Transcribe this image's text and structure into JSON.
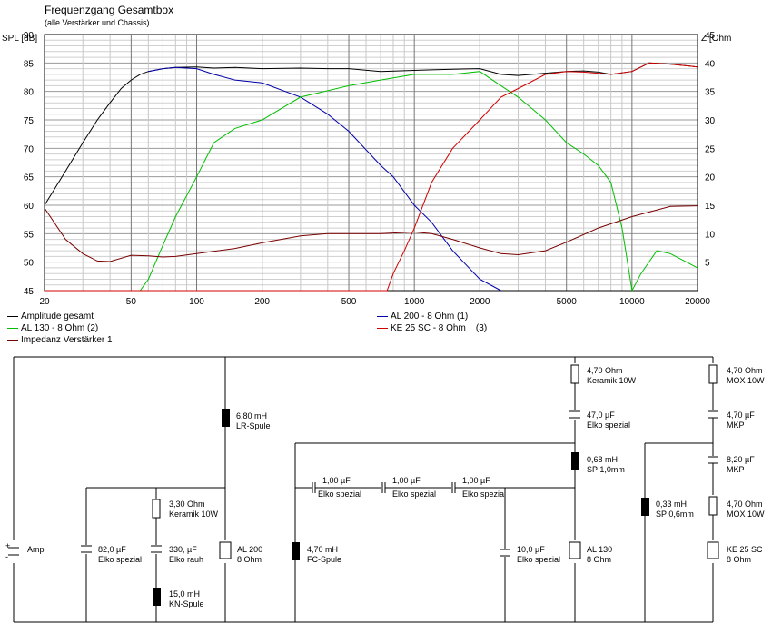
{
  "chart_data": {
    "type": "line",
    "title": "Frequenzgang Gesamtbox",
    "subtitle": "(alle Verstärker und Chassis)",
    "ylabel": "SPL [dB]",
    "y2label": "Z [Ohm",
    "x_scale": "log",
    "xlim": [
      20,
      20000
    ],
    "ylim": [
      45,
      90
    ],
    "y2lim": [
      0,
      45
    ],
    "x_ticks": [
      20,
      50,
      100,
      200,
      500,
      1000,
      2000,
      5000,
      10000,
      20000
    ],
    "x_tick_labels": [
      "20",
      "50",
      "100",
      "200",
      "500",
      "1000",
      "2000",
      "5000",
      "10000",
      "20000"
    ],
    "y_ticks": [
      45,
      50,
      55,
      60,
      65,
      70,
      75,
      80,
      85,
      90
    ],
    "y_tick_labels": [
      "45",
      "50",
      "55",
      "60",
      "65",
      "70",
      "75",
      "80",
      "85",
      "90"
    ],
    "y2_ticks": [
      5,
      10,
      15,
      20,
      25,
      30,
      35,
      40,
      45
    ],
    "y2_tick_labels": [
      "5",
      "10",
      "15",
      "20",
      "25",
      "30",
      "35",
      "40",
      "45"
    ],
    "grid": true,
    "legend_position": "bottom",
    "series": [
      {
        "name": "Amplitude gesamt",
        "color": "#000000",
        "axis": "left",
        "x": [
          20,
          25,
          30,
          35,
          40,
          45,
          50,
          55,
          60,
          70,
          80,
          100,
          120,
          150,
          200,
          300,
          400,
          500,
          700,
          1000,
          1200,
          1500,
          2000,
          2500,
          3000,
          4000,
          5000,
          6000,
          7000,
          8000,
          10000,
          12000,
          15000,
          20000
        ],
        "y": [
          60,
          66,
          71,
          75,
          78,
          80.5,
          82,
          83,
          83.5,
          84,
          84.2,
          84.3,
          84.1,
          84.2,
          84.0,
          84.1,
          84.0,
          84.0,
          83.5,
          83.7,
          83.8,
          83.9,
          84.0,
          83.0,
          82.8,
          83.2,
          83.5,
          83.6,
          83.4,
          83.0,
          83.5,
          85,
          84.8,
          84.3
        ]
      },
      {
        "name": "AL 200 - 8 Ohm (1)",
        "color": "#0000aa",
        "axis": "left",
        "x": [
          60,
          70,
          80,
          100,
          120,
          150,
          200,
          300,
          400,
          500,
          700,
          800,
          1000,
          1200,
          1500,
          2000,
          2500
        ],
        "y": [
          83.5,
          84,
          84.2,
          84,
          83,
          82,
          81.5,
          79,
          76,
          73,
          67,
          65,
          60,
          57,
          52,
          47,
          45
        ]
      },
      {
        "name": "AL 130 - 8 Ohm (2)",
        "color": "#00c000",
        "axis": "left",
        "x": [
          20,
          55,
          60,
          70,
          80,
          100,
          120,
          150,
          200,
          300,
          500,
          700,
          1000,
          1200,
          1500,
          2000,
          2500,
          3000,
          4000,
          5000,
          6000,
          7000,
          8000,
          9000,
          10000,
          11000,
          13000,
          15000,
          20000
        ],
        "y": [
          45,
          45,
          47,
          53,
          58,
          65,
          71,
          73.5,
          75,
          79,
          81,
          82,
          83,
          83,
          83,
          83.5,
          81,
          79,
          75,
          71,
          69,
          67,
          64,
          56,
          45,
          48,
          52,
          51.5,
          49
        ]
      },
      {
        "name": "KE 25 SC - 8 Ohm    (3)",
        "color": "#d00000",
        "axis": "left",
        "x": [
          20,
          750,
          800,
          900,
          1000,
          1200,
          1500,
          2000,
          2500,
          3000,
          4000,
          5000,
          6000,
          8000,
          10000,
          12000,
          15000,
          20000
        ],
        "y": [
          45,
          45,
          48,
          52,
          56,
          64,
          70,
          75,
          79,
          80.5,
          83,
          83.5,
          83.4,
          83,
          83.5,
          85,
          84.8,
          84.3
        ]
      },
      {
        "name": "Impedanz Verstärker 1",
        "color": "#7a0000",
        "axis": "right",
        "x": [
          20,
          25,
          30,
          35,
          40,
          50,
          60,
          70,
          80,
          100,
          150,
          200,
          300,
          400,
          500,
          700,
          1000,
          1200,
          1500,
          2000,
          2500,
          3000,
          4000,
          5000,
          7000,
          10000,
          15000,
          20000
        ],
        "y": [
          14.5,
          9,
          6.5,
          5.2,
          5.1,
          6.2,
          6.1,
          5.9,
          6.0,
          6.5,
          7.4,
          8.4,
          9.6,
          10,
          10,
          10,
          10.3,
          10,
          9,
          7.5,
          6.5,
          6.3,
          7,
          8.5,
          11,
          13,
          14.8,
          14.9
        ]
      }
    ]
  },
  "schematic": {
    "amp_label": "Amp",
    "amp_plus": "+",
    "amp_minus": "-",
    "tw_r1": "4,70 Ohm",
    "tw_r1_type": "MOX 10W",
    "tw_c1": "4,70 µF",
    "tw_c1_type": "MKP",
    "tw_c2": "8,20 µF",
    "tw_c2_type": "MKP",
    "tw_l": "0,33 mH",
    "tw_l_type": "SP 0,6mm",
    "tw_r2": "4,70 Ohm",
    "tw_r2_type": "MOX 10W",
    "tw_name": "KE 25 SC",
    "tw_ohm": "8 Ohm",
    "mid_r": "4,70 Ohm",
    "mid_r_type": "Keramik 10W",
    "mid_c": "47,0 µF",
    "mid_c_type": "Elko spezial",
    "mid_l": "0,68 mH",
    "mid_l_type": "SP 1,0mm",
    "ser_c1": "1,00 µF",
    "ser_c1_type": "Elko spezial",
    "ser_c2": "1,00 µF",
    "ser_c2_type": "Elko spezial",
    "ser_c3": "1,00 µF",
    "ser_c3_type": "Elko spezial",
    "fc_l": "4,70 mH",
    "fc_l_type": "FC-Spule",
    "mid_csh": "10,0 µF",
    "mid_csh_type": "Elko spezial",
    "mid_name": "AL 130",
    "mid_ohm": "8 Ohm",
    "woof_l": "6,80 mH",
    "woof_l_type": "LR-Spule",
    "woof_c": "82,0 µF",
    "woof_c_type": "Elko spezial",
    "woof_r": "3,30 Ohm",
    "woof_r_type": "Keramik 10W",
    "woof_c2": "330, µF",
    "woof_c2_type": "Elko rauh",
    "woof_l2": "15,0 mH",
    "woof_l2_type": "KN-Spule",
    "woof_name": "AL 200",
    "woof_ohm": "8 Ohm"
  }
}
